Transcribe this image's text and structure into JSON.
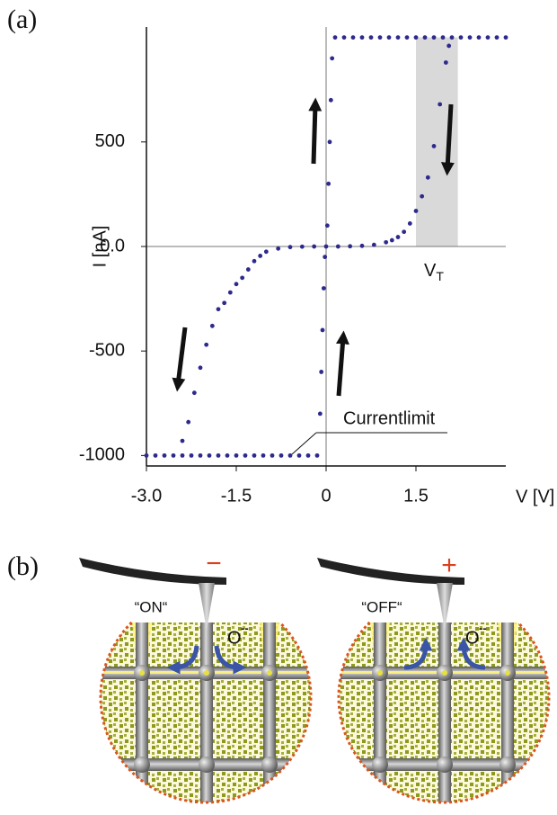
{
  "chart_data": {
    "type": "scatter",
    "panel_label": "(a)",
    "x_label": "V [V]",
    "y_label": "I [nA]",
    "xlim": [
      -3,
      3
    ],
    "ylim": [
      -1050,
      1050
    ],
    "xticks": [
      {
        "value": -3,
        "label": "-3.0"
      },
      -1.5,
      0,
      1.5
    ],
    "yticks": [
      -1000,
      -500,
      {
        "value": 0,
        "label": "0.0"
      },
      500
    ],
    "zero_lines": true,
    "shaded_range": {
      "x": [
        1.5,
        2.2
      ],
      "y": [
        0,
        1000
      ],
      "color": "#d9d9d9"
    },
    "threshold_label": "V",
    "threshold_subscript": "T",
    "annotation": "Currentlimit",
    "series": [
      {
        "color": "#2e2a8c",
        "x": [
          -3,
          -2.85,
          -2.7,
          -2.55,
          -2.4,
          -2.25,
          -2.1,
          -1.95,
          -1.8,
          -1.65,
          -1.5,
          -1.35,
          -1.2,
          -1.05,
          -0.9,
          -0.75,
          -0.6,
          -0.45,
          -0.3,
          -0.15,
          -0.1,
          -0.08,
          -0.06,
          -0.04,
          -0.02,
          0.02,
          0.04,
          0.06,
          0.08,
          0.1,
          0.15,
          0.3,
          0.45,
          0.6,
          0.75,
          0.9,
          1.05,
          1.2,
          1.35,
          1.5,
          1.65,
          1.8,
          1.95,
          2.1,
          2.25,
          2.4,
          2.55,
          2.7,
          2.85,
          3,
          0,
          0.2,
          0.4,
          0.6,
          0.8,
          1.0,
          1.1,
          1.2,
          1.3,
          1.4,
          1.5,
          1.6,
          1.7,
          1.8,
          1.9,
          2.0,
          2.05,
          -0.2,
          -0.4,
          -0.6,
          -0.8,
          -1.0,
          -1.1,
          -1.2,
          -1.3,
          -1.4,
          -1.5,
          -1.6,
          -1.7,
          -1.8,
          -1.9,
          -2.0,
          -2.1,
          -2.2,
          -2.3,
          -2.4
        ],
        "values": [
          -1000,
          -1000,
          -1000,
          -1000,
          -1000,
          -1000,
          -1000,
          -1000,
          -1000,
          -1000,
          -1000,
          -1000,
          -1000,
          -1000,
          -1000,
          -1000,
          -1000,
          -1000,
          -1000,
          -1000,
          -800,
          -600,
          -400,
          -200,
          -50,
          100,
          300,
          500,
          700,
          900,
          1000,
          1000,
          1000,
          1000,
          1000,
          1000,
          1000,
          1000,
          1000,
          1000,
          1000,
          1000,
          1000,
          1000,
          1000,
          1000,
          1000,
          1000,
          1000,
          1000,
          0,
          0,
          1,
          3,
          8,
          20,
          30,
          45,
          70,
          110,
          170,
          240,
          330,
          480,
          680,
          880,
          960,
          0,
          -1,
          -3,
          -10,
          -25,
          -45,
          -70,
          -110,
          -150,
          -180,
          -220,
          -270,
          -300,
          -380,
          -470,
          -580,
          -700,
          -840,
          -930
        ]
      }
    ]
  },
  "diagram": {
    "panel_label": "(b)",
    "left": {
      "sign": "−",
      "state": "“ON“",
      "ion": "O",
      "ion_charge": "--"
    },
    "right": {
      "sign": "+",
      "state": "“OFF“",
      "ion": "O",
      "ion_charge": "--"
    }
  }
}
